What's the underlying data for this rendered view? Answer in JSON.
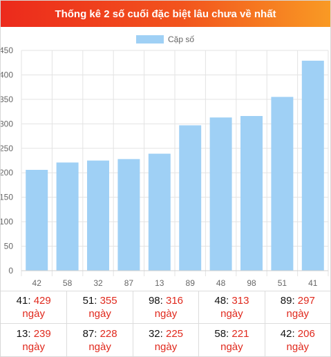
{
  "header": {
    "title": "Thống kê 2 số cuối đặc biệt lâu chưa về nhất"
  },
  "chart_data": {
    "type": "bar",
    "categories": [
      "42",
      "58",
      "32",
      "87",
      "13",
      "89",
      "48",
      "98",
      "51",
      "41"
    ],
    "series": [
      {
        "name": "Cặp số",
        "values": [
          206,
          221,
          225,
          228,
          239,
          297,
          313,
          316,
          355,
          429
        ]
      }
    ],
    "ylim": [
      0,
      450
    ],
    "yticks": [
      0,
      50,
      100,
      150,
      200,
      250,
      300,
      350,
      400,
      450
    ],
    "ytick_labels": [
      "0",
      "50",
      "100",
      "150",
      "200",
      "250",
      "300",
      "350",
      "400",
      "450"
    ],
    "grid": true,
    "legend": "top",
    "bar_color": "#9fd0f5"
  },
  "stats": [
    {
      "num": "41",
      "sep": ": ",
      "value": "429",
      "unit": "ngày"
    },
    {
      "num": "51",
      "sep": ": ",
      "value": "355",
      "unit": "ngày"
    },
    {
      "num": "98",
      "sep": ": ",
      "value": "316",
      "unit": "ngày"
    },
    {
      "num": "48",
      "sep": ": ",
      "value": "313",
      "unit": "ngày"
    },
    {
      "num": "89",
      "sep": ": ",
      "value": "297",
      "unit": "ngày"
    },
    {
      "num": "13",
      "sep": ": ",
      "value": "239",
      "unit": "ngày"
    },
    {
      "num": "87",
      "sep": ": ",
      "value": "228",
      "unit": "ngày"
    },
    {
      "num": "32",
      "sep": ": ",
      "value": "225",
      "unit": "ngày"
    },
    {
      "num": "58",
      "sep": ": ",
      "value": "221",
      "unit": "ngày"
    },
    {
      "num": "42",
      "sep": ": ",
      "value": "206",
      "unit": "ngày"
    }
  ]
}
